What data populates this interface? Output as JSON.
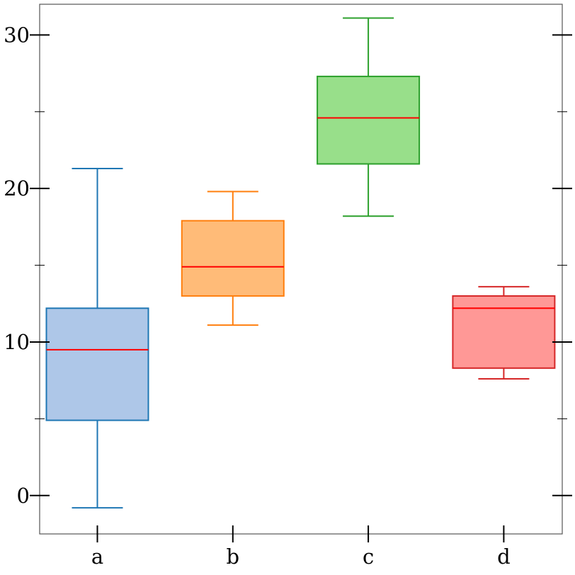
{
  "chart_data": {
    "type": "box",
    "categories": [
      "a",
      "b",
      "c",
      "d"
    ],
    "ylim": [
      -2.5,
      32
    ],
    "yticks_major": [
      0,
      10,
      20,
      30
    ],
    "yticks_minor": [
      5,
      15,
      25
    ],
    "grid": false,
    "legend": "none",
    "median_color": "#ff0000",
    "boxes": [
      {
        "category": "a",
        "whislo": -0.8,
        "q1": 4.9,
        "median": 9.5,
        "q3": 12.2,
        "whishi": 21.3,
        "fill": "#aec7e8",
        "edge": "#1f77b4"
      },
      {
        "category": "b",
        "whislo": 11.1,
        "q1": 13.0,
        "median": 14.9,
        "q3": 17.9,
        "whishi": 19.8,
        "fill": "#ffbb78",
        "edge": "#ff7f0e"
      },
      {
        "category": "c",
        "whislo": 18.2,
        "q1": 21.6,
        "median": 24.6,
        "q3": 27.3,
        "whishi": 31.1,
        "fill": "#98df8a",
        "edge": "#2ca02c"
      },
      {
        "category": "d",
        "whislo": 7.6,
        "q1": 8.3,
        "median": 12.2,
        "q3": 13.0,
        "whishi": 13.6,
        "fill": "#ff9896",
        "edge": "#d62728"
      }
    ]
  }
}
